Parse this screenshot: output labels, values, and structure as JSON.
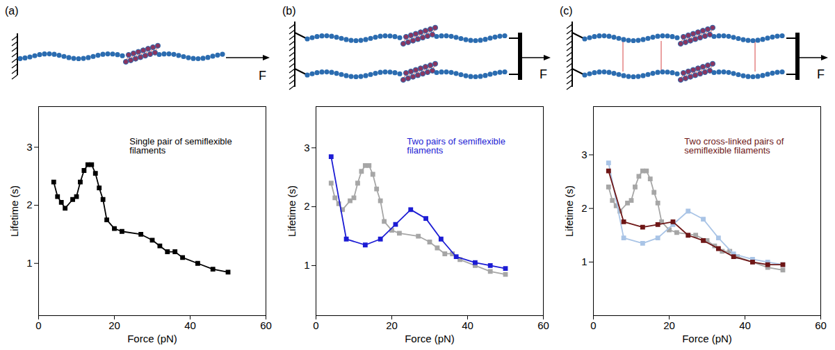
{
  "chart_data": [
    {
      "type": "line",
      "panel": "(a)",
      "force_label": "F",
      "annotation": "Single pair of semiflexible filaments",
      "x_label": "Force (pN)",
      "y_label": "Lifetime (s)",
      "xlim": [
        0,
        60
      ],
      "ylim": [
        0.1,
        3.7
      ],
      "xticks": [
        0,
        20,
        40,
        60
      ],
      "yticks": [
        1,
        2,
        3
      ],
      "grid": false,
      "series": [
        {
          "color": "#000000",
          "marker": "square",
          "line_style": "solid",
          "x": [
            4,
            5,
            6,
            7,
            9,
            10,
            11,
            12,
            13,
            14,
            15,
            16,
            17,
            18,
            20,
            22,
            27,
            30,
            32,
            34,
            36,
            38,
            42,
            46,
            50
          ],
          "values": [
            2.4,
            2.15,
            2.05,
            1.95,
            2.1,
            2.15,
            2.4,
            2.6,
            2.7,
            2.7,
            2.55,
            2.3,
            2.1,
            1.75,
            1.6,
            1.55,
            1.5,
            1.4,
            1.3,
            1.2,
            1.2,
            1.1,
            1.0,
            0.9,
            0.85
          ]
        }
      ]
    },
    {
      "type": "line",
      "panel": "(b)",
      "force_label": "F",
      "annotation": "Two pairs of semiflexible filaments",
      "x_label": "Force (pN)",
      "y_label": "Lifetime (s)",
      "xlim": [
        0,
        60
      ],
      "ylim": [
        0.15,
        3.7
      ],
      "xticks": [
        0,
        20,
        40,
        60
      ],
      "yticks": [
        1,
        2,
        3
      ],
      "grid": false,
      "series": [
        {
          "color": "#a6a6a6",
          "marker": "square",
          "line_style": "solid",
          "x": [
            4,
            5,
            6,
            7,
            9,
            10,
            11,
            12,
            13,
            14,
            15,
            16,
            17,
            18,
            20,
            22,
            27,
            30,
            32,
            34,
            36,
            38,
            42,
            46,
            50
          ],
          "values": [
            2.4,
            2.15,
            2.05,
            1.95,
            2.1,
            2.15,
            2.4,
            2.6,
            2.7,
            2.7,
            2.55,
            2.3,
            2.1,
            1.75,
            1.6,
            1.55,
            1.5,
            1.4,
            1.3,
            1.2,
            1.2,
            1.1,
            1.0,
            0.9,
            0.85
          ]
        },
        {
          "color": "#1c1cd4",
          "marker": "square",
          "line_style": "solid",
          "x": [
            4,
            8,
            13,
            17,
            21,
            25,
            29,
            33,
            37,
            42,
            46,
            50
          ],
          "values": [
            2.85,
            1.45,
            1.35,
            1.45,
            1.7,
            1.95,
            1.8,
            1.45,
            1.15,
            1.05,
            1.0,
            0.95
          ]
        }
      ]
    },
    {
      "type": "line",
      "panel": "(c)",
      "force_label": "F",
      "annotation": "Two cross-linked pairs of semiflexible filaments",
      "x_label": "Force (pN)",
      "y_label": "Lifetime (s)",
      "xlim": [
        0,
        60
      ],
      "ylim": [
        0,
        3.9
      ],
      "xticks": [
        0,
        20,
        40,
        60
      ],
      "yticks": [
        1,
        2,
        3
      ],
      "grid": false,
      "series": [
        {
          "color": "#a6a6a6",
          "marker": "square",
          "line_style": "solid",
          "x": [
            4,
            5,
            6,
            7,
            9,
            10,
            11,
            12,
            13,
            14,
            15,
            16,
            17,
            18,
            20,
            22,
            27,
            30,
            32,
            34,
            36,
            38,
            42,
            46,
            50
          ],
          "values": [
            2.4,
            2.15,
            2.05,
            1.95,
            2.1,
            2.15,
            2.4,
            2.6,
            2.7,
            2.7,
            2.55,
            2.3,
            2.1,
            1.75,
            1.6,
            1.55,
            1.5,
            1.4,
            1.3,
            1.2,
            1.2,
            1.1,
            1.0,
            0.9,
            0.85
          ]
        },
        {
          "color": "#a9c4e6",
          "marker": "square",
          "line_style": "solid",
          "x": [
            4,
            8,
            13,
            17,
            21,
            25,
            29,
            33,
            37,
            42,
            46,
            50
          ],
          "values": [
            2.85,
            1.45,
            1.35,
            1.45,
            1.7,
            1.95,
            1.8,
            1.45,
            1.15,
            1.05,
            1.0,
            0.95
          ]
        },
        {
          "color": "#6e1616",
          "marker": "square",
          "line_style": "solid",
          "x": [
            4,
            8,
            13,
            17,
            21,
            25,
            29,
            33,
            37,
            42,
            46,
            50
          ],
          "values": [
            2.7,
            1.75,
            1.65,
            1.7,
            1.75,
            1.5,
            1.4,
            1.25,
            1.1,
            1.0,
            0.95,
            0.95
          ]
        }
      ]
    }
  ]
}
